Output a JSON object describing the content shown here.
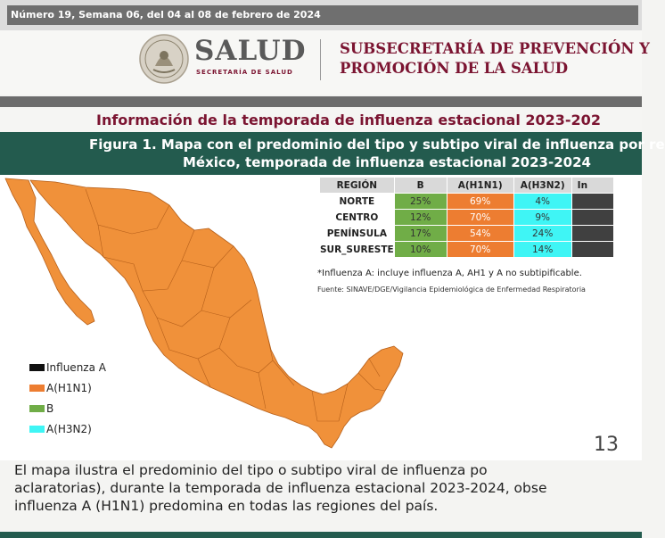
{
  "issue_line": "Número 19, Semana 06, del 04 al 08 de febrero de 2024",
  "header": {
    "salud_word": "SALUD",
    "salud_sub": "SECRETARÍA DE SALUD",
    "subsecretaria_line1": "SUBSECRETARÍA DE PREVENCIÓN Y",
    "subsecretaria_line2": "PROMOCIÓN DE LA SALUD"
  },
  "info_title": "Información de la temporada de influenza estacional 2023-202",
  "figure": {
    "line1": "Figura 1. Mapa con el predominio del tipo y subtipo viral de influenza por re",
    "line2": "México, temporada de influenza estacional 2023-2024"
  },
  "table": {
    "headers": [
      "REGIÓN",
      "B",
      "A(H1N1)",
      "A(H3N2)",
      "In"
    ],
    "rows": [
      {
        "region": "NORTE",
        "b": "25%",
        "h1n1": "69%",
        "h3n2": "4%",
        "inf": ""
      },
      {
        "region": "CENTRO",
        "b": "12%",
        "h1n1": "70%",
        "h3n2": "9%",
        "inf": ""
      },
      {
        "region": "PENÍNSULA",
        "b": "17%",
        "h1n1": "54%",
        "h3n2": "24%",
        "inf": ""
      },
      {
        "region": "SUR_SURESTE",
        "b": "10%",
        "h1n1": "70%",
        "h3n2": "14%",
        "inf": ""
      }
    ]
  },
  "note": "*Influenza A: incluye influenza A, AH1 y A no subtipificable.",
  "source": "Fuente: SINAVE/DGE/Vigilancia Epidemiológica de Enfermedad Respiratoria",
  "legend": [
    {
      "label": "Influenza A",
      "color": "#111111"
    },
    {
      "label": "A(H1N1)",
      "color": "#ed7d31"
    },
    {
      "label": "B",
      "color": "#70ad47"
    },
    {
      "label": "A(H3N2)",
      "color": "#3ff5f5"
    }
  ],
  "page_number": "13",
  "paragraph": {
    "line1": "El mapa ilustra el predominio del tipo o subtipo viral de influenza po",
    "line2": "aclaratorias), durante la temporada de influenza estacional 2023-2024, obse",
    "line3": "influenza A (H1N1) predomina en todas las regiones del país."
  },
  "colors": {
    "brand_maroon": "#7b1431",
    "brand_green": "#235b4e",
    "map_fill": "#f0913a"
  }
}
